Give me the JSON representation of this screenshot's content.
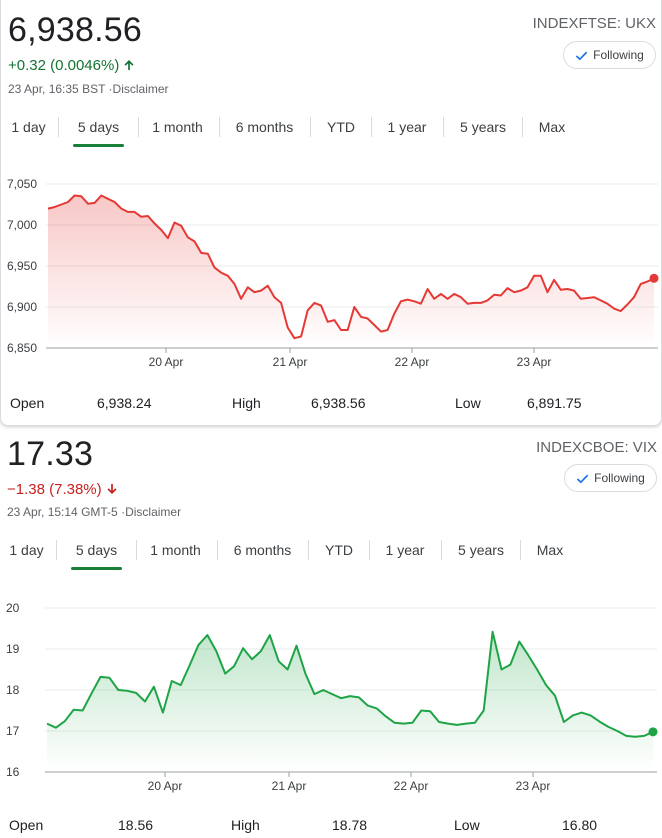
{
  "tabs": [
    "1 day",
    "5 days",
    "1 month",
    "6 months",
    "YTD",
    "1 year",
    "5 years",
    "Max"
  ],
  "active_tab": "5 days",
  "follow_label": "Following",
  "stat_labels": {
    "open": "Open",
    "high": "High",
    "low": "Low"
  },
  "colors": {
    "up": "#137333",
    "down": "#c5221f",
    "red_line": "#e53935",
    "green_line": "#1ea446",
    "accent": "#1a73e8"
  },
  "ftse": {
    "price": "6,938.56",
    "change": "+0.32 (0.0046%)",
    "direction": "up",
    "timestamp": "23 Apr, 16:35 BST",
    "disclaimer": "Disclaimer",
    "ticker": "INDEXFTSE: UKX",
    "open": "6,938.24",
    "high": "6,938.56",
    "low": "6,891.75"
  },
  "vix": {
    "price": "17.33",
    "change": "−1.38 (7.38%)",
    "direction": "down",
    "timestamp": "23 Apr, 15:14 GMT-5",
    "disclaimer": "Disclaimer",
    "ticker": "INDEXCBOE: VIX",
    "open": "18.56",
    "high": "18.78",
    "low": "16.80"
  },
  "chart_data": [
    {
      "type": "area",
      "title": "",
      "x_ticks": [
        "20 Apr",
        "21 Apr",
        "22 Apr",
        "23 Apr"
      ],
      "y_ticks": [
        "6,850",
        "6,900",
        "6,950",
        "7,000",
        "7,050"
      ],
      "ylim": [
        6850,
        7050
      ],
      "grid": true,
      "series": [
        {
          "values": [
            7020,
            7022,
            7025,
            7028,
            7036,
            7035,
            7026,
            7027,
            7036,
            7032,
            7028,
            7020,
            7016,
            7016,
            7010,
            7011,
            7002,
            6994,
            6984,
            7003,
            6999,
            6985,
            6980,
            6966,
            6965,
            6948,
            6942,
            6938,
            6928,
            6910,
            6924,
            6918,
            6920,
            6926,
            6912,
            6905,
            6875,
            6862,
            6864,
            6896,
            6905,
            6902,
            6882,
            6884,
            6872,
            6872,
            6900,
            6888,
            6886,
            6878,
            6870,
            6872,
            6892,
            6907,
            6909,
            6907,
            6904,
            6922,
            6910,
            6916,
            6910,
            6916,
            6912,
            6904,
            6905,
            6905,
            6908,
            6915,
            6914,
            6923,
            6918,
            6920,
            6924,
            6938,
            6938,
            6918,
            6933,
            6921,
            6922,
            6920,
            6910,
            6911,
            6912,
            6908,
            6904,
            6898,
            6895,
            6903,
            6912,
            6928,
            6931,
            6935
          ],
          "last": 6935
        }
      ]
    },
    {
      "type": "area",
      "title": "",
      "x_ticks": [
        "20 Apr",
        "21 Apr",
        "22 Apr",
        "23 Apr"
      ],
      "y_ticks": [
        "16",
        "17",
        "18",
        "19",
        "20"
      ],
      "ylim": [
        16,
        20
      ],
      "grid": true,
      "series": [
        {
          "values": [
            17.18,
            17.08,
            17.24,
            17.52,
            17.5,
            17.92,
            18.32,
            18.3,
            18.0,
            17.98,
            17.93,
            17.72,
            18.08,
            17.45,
            18.22,
            18.12,
            18.6,
            19.1,
            19.34,
            18.95,
            18.4,
            18.58,
            19.02,
            18.75,
            18.95,
            19.34,
            18.7,
            18.5,
            19.08,
            18.4,
            17.9,
            18.0,
            17.9,
            17.8,
            17.85,
            17.82,
            17.62,
            17.55,
            17.36,
            17.2,
            17.18,
            17.2,
            17.5,
            17.48,
            17.22,
            17.18,
            17.15,
            17.18,
            17.2,
            17.5,
            19.42,
            18.5,
            18.62,
            19.18,
            18.85,
            18.5,
            18.12,
            17.86,
            17.22,
            17.38,
            17.45,
            17.38,
            17.23,
            17.1,
            17.0,
            16.88,
            16.86,
            16.88,
            16.98
          ],
          "last": 16.98
        }
      ]
    }
  ]
}
